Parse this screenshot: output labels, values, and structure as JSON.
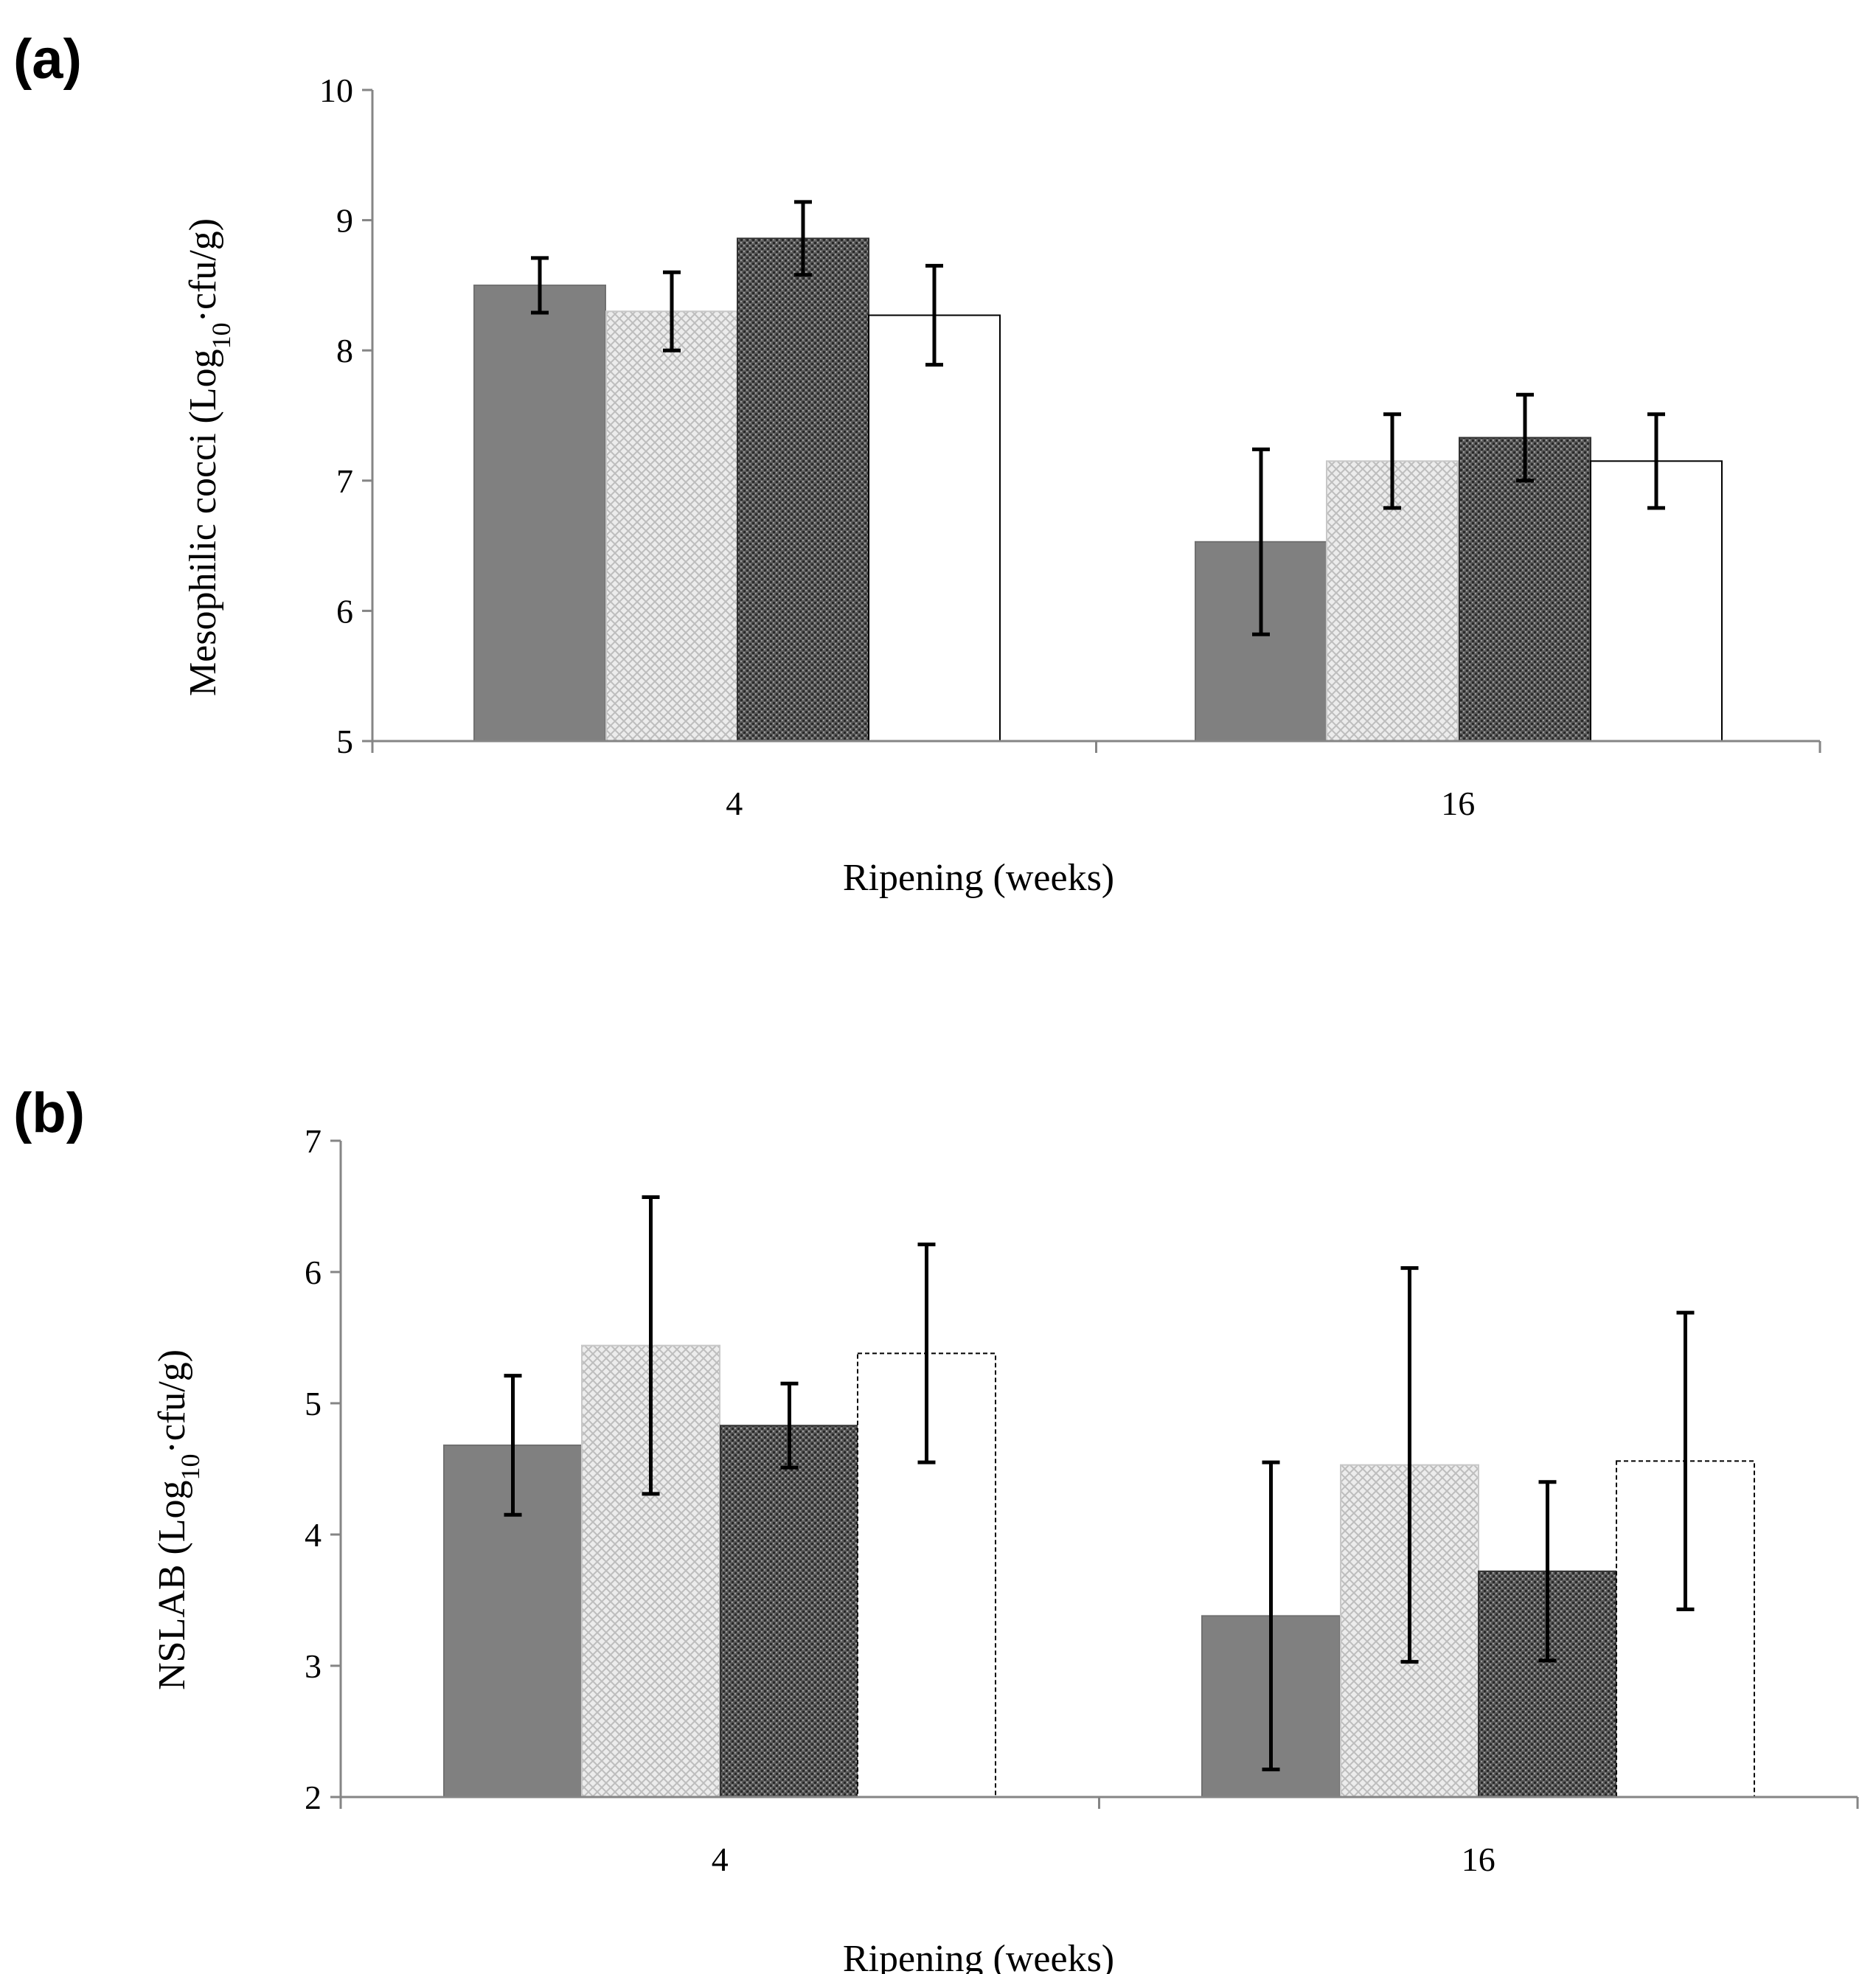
{
  "chart_data": [
    {
      "panel_label": "(a)",
      "type": "bar",
      "categories": [
        "4",
        "16"
      ],
      "xlabel": "Ripening (weeks)",
      "ylabel_main": "Mesophilic cocci (Log",
      "ylabel_sub": "10",
      "ylabel_end": "·cfu/g)",
      "ylim": [
        5,
        10
      ],
      "yticks": [
        5,
        6,
        7,
        8,
        9,
        10
      ],
      "grid": false,
      "legend": "none",
      "series": [
        {
          "name": "series 1",
          "fill": "solid-gray",
          "values": [
            8.5,
            6.53
          ],
          "errors": [
            0.21,
            0.71
          ]
        },
        {
          "name": "series 2",
          "fill": "light-crosshatch",
          "values": [
            8.3,
            7.15
          ],
          "errors": [
            0.3,
            0.36
          ]
        },
        {
          "name": "series 3",
          "fill": "dark-dots",
          "values": [
            8.86,
            7.33
          ],
          "errors": [
            0.28,
            0.33
          ]
        },
        {
          "name": "series 4",
          "fill": "white",
          "values": [
            8.27,
            7.15
          ],
          "errors": [
            0.38,
            0.36
          ]
        }
      ]
    },
    {
      "panel_label": "(b)",
      "type": "bar",
      "categories": [
        "4",
        "16"
      ],
      "xlabel": "Ripening (weeks)",
      "ylabel_main": "NSLAB (Log",
      "ylabel_sub": "10",
      "ylabel_end": "·cfu/g)",
      "ylim": [
        2,
        7
      ],
      "yticks": [
        2,
        3,
        4,
        5,
        6,
        7
      ],
      "grid": false,
      "legend": "none",
      "series": [
        {
          "name": "series 1",
          "fill": "solid-gray",
          "values": [
            4.68,
            3.38
          ],
          "errors": [
            0.53,
            1.17
          ]
        },
        {
          "name": "series 2",
          "fill": "light-crosshatch",
          "values": [
            5.44,
            4.53
          ],
          "errors": [
            1.13,
            1.5
          ]
        },
        {
          "name": "series 3",
          "fill": "dark-dots",
          "values": [
            4.83,
            3.72
          ],
          "errors": [
            0.32,
            0.68
          ]
        },
        {
          "name": "series 4",
          "fill": "white-dashed",
          "values": [
            5.38,
            4.56
          ],
          "errors": [
            0.83,
            1.13
          ]
        }
      ]
    }
  ]
}
